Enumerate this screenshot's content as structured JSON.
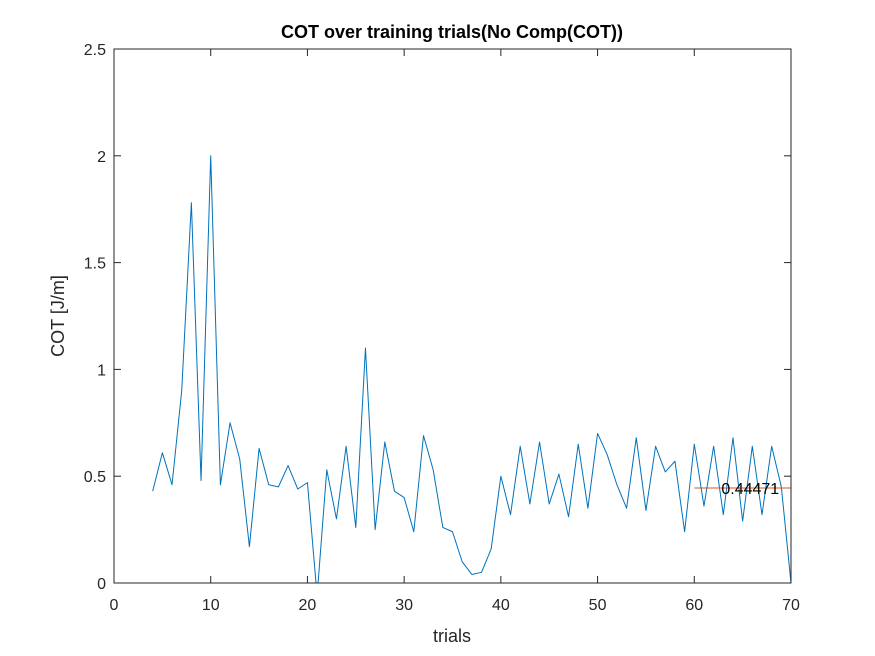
{
  "chart_data": {
    "type": "line",
    "title": "COT over training trials(No Comp(COT))",
    "xlabel": "trials",
    "ylabel": "COT [J/m]",
    "xlim": [
      0,
      70
    ],
    "ylim": [
      0,
      2.5
    ],
    "xticks": [
      "0",
      "10",
      "20",
      "30",
      "40",
      "50",
      "60",
      "70"
    ],
    "yticks": [
      "0",
      "0.5",
      "1",
      "1.5",
      "2",
      "2.5"
    ],
    "grid": false,
    "series": [
      {
        "color": "#0072BD",
        "x": [
          4,
          5,
          6,
          7,
          8,
          9,
          10,
          11,
          12,
          13,
          14,
          15,
          16,
          17,
          18,
          19,
          20,
          21,
          22,
          23,
          24,
          25,
          26,
          27,
          28,
          29,
          30,
          31,
          32,
          33,
          34,
          35,
          36,
          37,
          38,
          39,
          40,
          41,
          42,
          43,
          44,
          45,
          46,
          47,
          48,
          49,
          50,
          51,
          52,
          53,
          54,
          55,
          56,
          57,
          58,
          59,
          60,
          61,
          62,
          63,
          64,
          65,
          66,
          67,
          68,
          69,
          70
        ],
        "y": [
          0.43,
          0.61,
          0.46,
          0.9,
          1.78,
          0.48,
          2.0,
          0.46,
          0.75,
          0.58,
          0.17,
          0.63,
          0.46,
          0.45,
          0.55,
          0.44,
          0.47,
          -0.06,
          0.53,
          0.3,
          0.64,
          0.26,
          1.1,
          0.25,
          0.66,
          0.43,
          0.4,
          0.24,
          0.69,
          0.53,
          0.26,
          0.24,
          0.1,
          0.04,
          0.05,
          0.16,
          0.5,
          0.32,
          0.64,
          0.37,
          0.66,
          0.37,
          0.51,
          0.31,
          0.65,
          0.35,
          0.7,
          0.6,
          0.46,
          0.35,
          0.68,
          0.34,
          0.64,
          0.52,
          0.57,
          0.24,
          0.65,
          0.36,
          0.64,
          0.32,
          0.68,
          0.29,
          0.64,
          0.32,
          0.64,
          0.45,
          0.0
        ]
      },
      {
        "color": "#D95319",
        "x": [
          60,
          70
        ],
        "y": [
          0.44471,
          0.44471
        ]
      }
    ],
    "annotations": [
      {
        "text": "0.44471",
        "x": 62.8,
        "y": 0.44471
      }
    ]
  }
}
